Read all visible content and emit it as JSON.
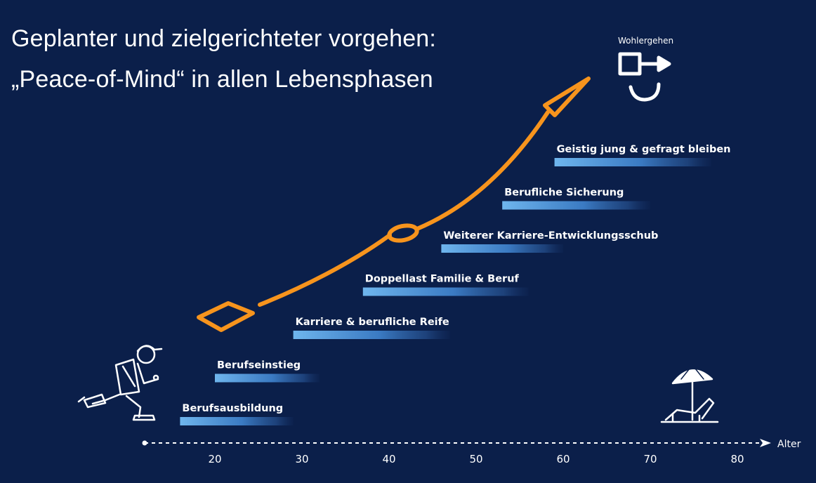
{
  "title": {
    "line1": "Geplanter und zielgerichteter vorgehen:",
    "line2": "„Peace-of-Mind“ in allen Lebensphasen"
  },
  "goal": {
    "label": "Wohlergehen",
    "icon": "wellbeing-icon"
  },
  "axis": {
    "label": "Alter",
    "ticks": [
      20,
      30,
      40,
      50,
      60,
      70,
      80
    ],
    "range": [
      13,
      82
    ]
  },
  "phases": [
    {
      "label": "Berufsausbildung",
      "start": 16,
      "end": 29
    },
    {
      "label": "Berufseinstieg",
      "start": 20,
      "end": 32
    },
    {
      "label": "Karriere & berufliche Reife",
      "start": 29,
      "end": 47
    },
    {
      "label": "Doppellast Familie & Beruf",
      "start": 37,
      "end": 56
    },
    {
      "label": "Weiterer Karriere-Entwicklungsschub",
      "start": 46,
      "end": 60
    },
    {
      "label": "Berufliche Sicherung",
      "start": 53,
      "end": 70
    },
    {
      "label": "Geistig jung & gefragt bleiben",
      "start": 59,
      "end": 77
    }
  ],
  "colors": {
    "background": "#0b1f4a",
    "bar": "#5aa9e6",
    "arrow": "#f7941d",
    "text": "#ffffff"
  },
  "icons": [
    "runner-icon",
    "beach-umbrella-icon",
    "wellbeing-icon",
    "progress-arrow-icon"
  ]
}
